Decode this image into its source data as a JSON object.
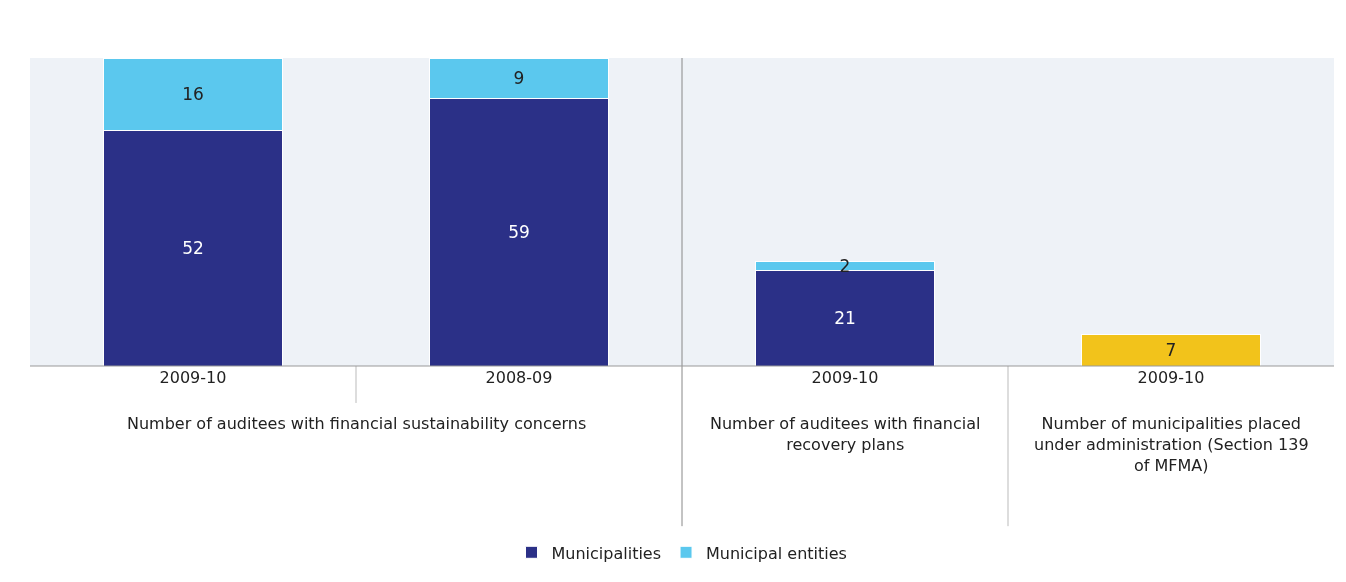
{
  "chart_data": {
    "type": "bar",
    "stacked": true,
    "data_labels": true,
    "legend": "bottom",
    "tick_labels": "x",
    "categories": [
      "2009-10",
      "2008-09",
      "2009-10",
      "2009-10"
    ],
    "ylim": [
      0,
      68
    ],
    "series": [
      {
        "name": "Municipalities",
        "color": "#2b3087",
        "values": [
          52,
          59,
          21,
          null
        ]
      },
      {
        "name": "Municipal entities",
        "color": "#5bc8ee",
        "values": [
          16,
          9,
          2,
          null
        ]
      },
      {
        "color": "#f2c31b",
        "values": [
          null,
          null,
          null,
          7
        ]
      }
    ],
    "annotations": [
      "Number of auditees with financial sustainability concerns",
      "Number of auditees with financial recovery plans",
      "Number of municipalities placed under administration (Section 139 of MFMA)"
    ]
  }
}
